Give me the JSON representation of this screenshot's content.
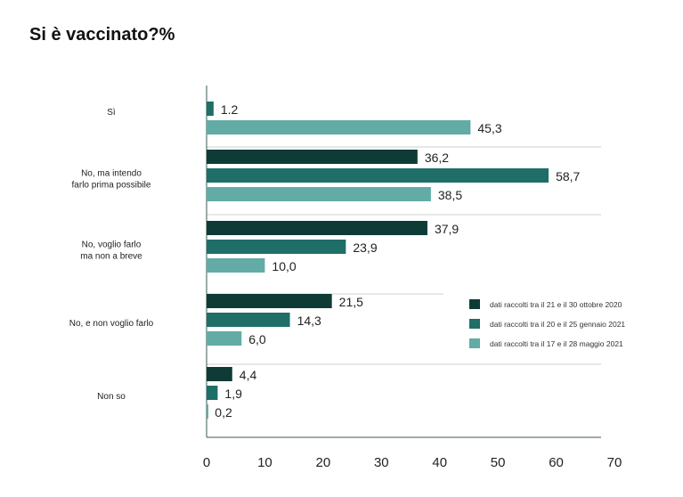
{
  "chart_data": {
    "type": "bar",
    "title": "Si è vaccinato?%",
    "xlabel": "",
    "ylabel": "",
    "xlim": [
      0,
      70
    ],
    "xticks": [
      "0",
      "10",
      "20",
      "30",
      "40",
      "50",
      "60",
      "70"
    ],
    "categories": [
      [
        "Sì"
      ],
      [
        "No, ma intendo",
        "farlo prima possibile"
      ],
      [
        "No, voglio farlo",
        "ma non a breve"
      ],
      [
        "No, e non voglio farlo"
      ],
      [
        "Non so"
      ]
    ],
    "series": [
      {
        "name": "dati raccolti tra il 21 e il 30 ottobre 2020",
        "color": "#0e3b36",
        "values": [
          null,
          36.2,
          37.9,
          21.5,
          4.4
        ],
        "labels": [
          "",
          "36,2",
          "37,9",
          "21,5",
          "4,4"
        ]
      },
      {
        "name": "dati raccolti tra il 20 e il 25 gennaio 2021",
        "color": "#1f6e67",
        "values": [
          1.2,
          58.7,
          23.9,
          14.3,
          1.9
        ],
        "labels": [
          "1.2",
          "58,7",
          "23,9",
          "14,3",
          "1,9"
        ]
      },
      {
        "name": "dati raccolti tra il 17 e il 28 maggio 2021",
        "color": "#62aca5",
        "values": [
          45.3,
          38.5,
          10.0,
          6.0,
          0.2
        ],
        "labels": [
          "45,3",
          "38,5",
          "10,0",
          "6,0",
          "0,2"
        ]
      }
    ],
    "legend": "right"
  }
}
